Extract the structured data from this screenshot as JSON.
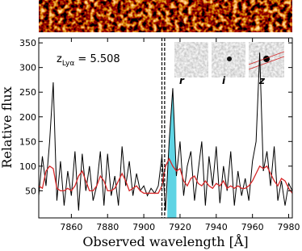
{
  "chart_data": {
    "type": "line",
    "annotation": {
      "main": "z",
      "sub": "Lyα",
      "rest": " = 5.508"
    },
    "ylabel": "Relative flux",
    "xlabel": "Observed wavelength [Å]",
    "inset_labels": [
      "r",
      "i",
      "z"
    ],
    "xlim": [
      7842,
      7982
    ],
    "ylim": [
      -5,
      360
    ],
    "xticks": [
      7860,
      7880,
      7900,
      7920,
      7940,
      7960,
      7980
    ],
    "yticks": [
      50,
      100,
      150,
      200,
      250,
      300,
      350
    ],
    "vlines": [
      7910,
      7911.5
    ],
    "highlight": [
      7913,
      7918
    ],
    "highlight_color": "#5fd4e4",
    "x": [
      7842,
      7844,
      7846,
      7848,
      7850,
      7852,
      7854,
      7856,
      7858,
      7860,
      7862,
      7864,
      7866,
      7868,
      7870,
      7872,
      7874,
      7876,
      7878,
      7880,
      7882,
      7884,
      7886,
      7888,
      7890,
      7892,
      7894,
      7896,
      7898,
      7900,
      7902,
      7904,
      7906,
      7908,
      7910,
      7912,
      7914,
      7916,
      7918,
      7920,
      7922,
      7924,
      7926,
      7928,
      7930,
      7932,
      7934,
      7936,
      7938,
      7940,
      7942,
      7944,
      7946,
      7948,
      7950,
      7952,
      7954,
      7956,
      7958,
      7960,
      7962,
      7964,
      7966,
      7968,
      7970,
      7972,
      7974,
      7976,
      7978,
      7980,
      7982
    ],
    "series": [
      {
        "color": "#000000",
        "values": [
          40,
          120,
          60,
          150,
          270,
          30,
          110,
          20,
          90,
          40,
          130,
          10,
          125,
          50,
          100,
          30,
          60,
          130,
          20,
          125,
          40,
          80,
          20,
          140,
          60,
          110,
          40,
          85,
          50,
          60,
          40,
          55,
          45,
          60,
          120,
          10,
          150,
          258,
          80,
          150,
          40,
          100,
          130,
          30,
          90,
          150,
          20,
          120,
          60,
          140,
          25,
          100,
          50,
          130,
          20,
          90,
          40,
          75,
          30,
          110,
          150,
          330,
          90,
          130,
          60,
          140,
          30,
          70,
          20,
          65,
          50
        ]
      },
      {
        "color": "#d62728",
        "values": [
          60,
          55,
          90,
          100,
          95,
          55,
          50,
          50,
          55,
          50,
          60,
          80,
          90,
          70,
          50,
          50,
          60,
          80,
          70,
          50,
          50,
          55,
          70,
          85,
          70,
          50,
          55,
          60,
          50,
          45,
          45,
          45,
          45,
          45,
          60,
          100,
          115,
          100,
          90,
          95,
          70,
          60,
          75,
          80,
          65,
          60,
          70,
          60,
          55,
          65,
          60,
          70,
          55,
          60,
          55,
          60,
          55,
          55,
          60,
          70,
          85,
          100,
          95,
          100,
          85,
          70,
          60,
          75,
          70,
          55,
          45
        ]
      }
    ]
  }
}
